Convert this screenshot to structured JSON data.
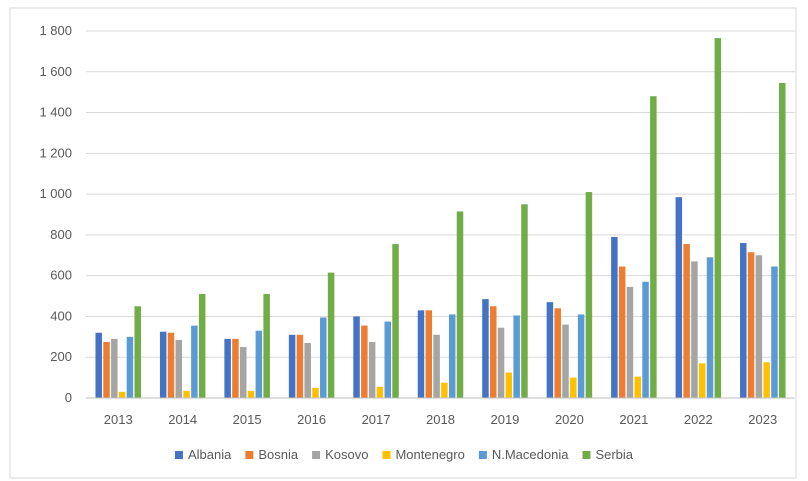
{
  "chart_data": {
    "type": "bar",
    "categories": [
      "2013",
      "2014",
      "2015",
      "2016",
      "2017",
      "2018",
      "2019",
      "2020",
      "2021",
      "2022",
      "2023"
    ],
    "series": [
      {
        "name": "Albania",
        "color": "#4472C4",
        "values": [
          320,
          325,
          290,
          310,
          400,
          430,
          485,
          470,
          790,
          985,
          760
        ]
      },
      {
        "name": "Bosnia",
        "color": "#ED7D31",
        "values": [
          275,
          320,
          290,
          310,
          355,
          430,
          450,
          440,
          645,
          755,
          715
        ]
      },
      {
        "name": "Kosovo",
        "color": "#A5A5A5",
        "values": [
          290,
          285,
          250,
          270,
          275,
          310,
          345,
          360,
          545,
          670,
          700
        ]
      },
      {
        "name": "Montenegro",
        "color": "#FFC000",
        "values": [
          30,
          35,
          35,
          50,
          55,
          75,
          125,
          100,
          105,
          170,
          175
        ]
      },
      {
        "name": "N.Macedonia",
        "color": "#5B9BD5",
        "values": [
          300,
          355,
          330,
          395,
          375,
          410,
          405,
          410,
          570,
          690,
          645
        ]
      },
      {
        "name": "Serbia",
        "color": "#70AD47",
        "values": [
          450,
          510,
          510,
          615,
          755,
          915,
          950,
          1010,
          1480,
          1765,
          1545
        ]
      }
    ],
    "ylim": [
      0,
      1800
    ],
    "yticks": [
      0,
      200,
      400,
      600,
      800,
      1000,
      1200,
      1400,
      1600,
      1800
    ],
    "ytick_labels": [
      "0",
      "200",
      "400",
      "600",
      "800",
      "1 000",
      "1 200",
      "1 400",
      "1 600",
      "1 800"
    ],
    "grid": true,
    "legend_position": "bottom"
  }
}
